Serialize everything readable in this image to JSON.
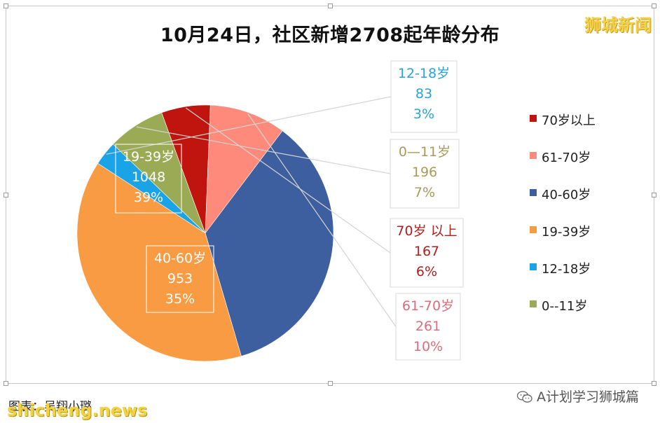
{
  "brand": "狮城新闻",
  "watermark": "shicheng.news",
  "footer_caption": "图表：吴翔小璐",
  "wechat_account": "A计划学习狮城篇",
  "chart_data": {
    "type": "pie",
    "title": "10月24日，社区新增2708起年龄分布",
    "legend_position": "right",
    "slices": [
      {
        "label": "12-18岁",
        "value": 83,
        "percent": "3%",
        "color": "#1aa3e6",
        "text_color": "#27a3d8",
        "callout": "outside",
        "legend": "12-18岁"
      },
      {
        "label": "0—11岁",
        "value": 196,
        "percent": "7%",
        "color": "#9bab55",
        "text_color": "#a89a5a",
        "callout": "outside",
        "legend": "0--11岁"
      },
      {
        "label": "70岁 以上",
        "value": 167,
        "percent": "6%",
        "color": "#c0140f",
        "text_color": "#b01e1e",
        "callout": "outside",
        "legend": "70岁以上"
      },
      {
        "label": "61-70岁",
        "value": 261,
        "percent": "10%",
        "color": "#fd8a7a",
        "text_color": "#e06b7a",
        "callout": "outside",
        "legend": "61-70岁"
      },
      {
        "label": "40-60岁",
        "value": 953,
        "percent": "35%",
        "color": "#3d5f9f",
        "text_color": "#ffffff",
        "callout": "inside",
        "legend": "40-60岁"
      },
      {
        "label": "19-39岁",
        "value": 1048,
        "percent": "39%",
        "color": "#f89b43",
        "text_color": "#ffffff",
        "callout": "inside",
        "legend": "19-39岁"
      }
    ],
    "legend_order": [
      "70岁以上",
      "61-70岁",
      "40-60岁",
      "19-39岁",
      "12-18岁",
      "0--11岁"
    ]
  }
}
